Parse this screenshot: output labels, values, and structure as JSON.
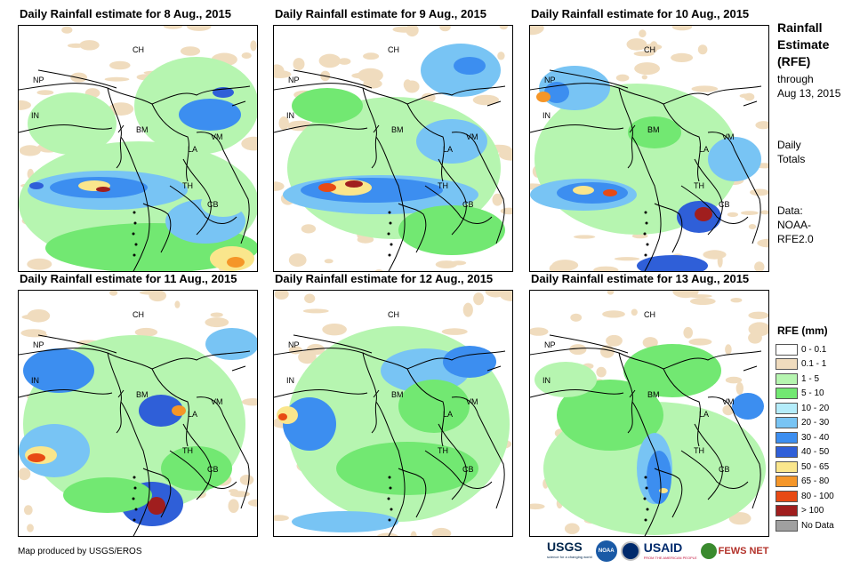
{
  "panels": [
    {
      "title": "Daily Rainfall estimate for 8 Aug., 2015"
    },
    {
      "title": "Daily Rainfall estimate for 9 Aug., 2015"
    },
    {
      "title": "Daily Rainfall estimate for 10 Aug., 2015"
    },
    {
      "title": "Daily Rainfall estimate for 11 Aug., 2015"
    },
    {
      "title": "Daily Rainfall estimate for 12 Aug., 2015"
    },
    {
      "title": "Daily Rainfall estimate for 13 Aug., 2015"
    }
  ],
  "country_labels": {
    "ch": "CH",
    "np": "NP",
    "in": "IN",
    "bm": "BM",
    "vm": "VM",
    "la": "LA",
    "th": "TH",
    "cb": "CB"
  },
  "sidebar": {
    "title_line1": "Rainfall",
    "title_line2": "Estimate",
    "title_line3": "(RFE)",
    "through": "through",
    "date": "Aug 13, 2015",
    "daily": "Daily",
    "totals": "Totals",
    "data_label": "Data:",
    "source1": "NOAA-",
    "source2": "RFE2.0"
  },
  "legend": {
    "title": "RFE (mm)",
    "items": [
      {
        "label": "0 - 0.1",
        "color": "#ffffff"
      },
      {
        "label": "0.1 - 1",
        "color": "#f0dcbe"
      },
      {
        "label": "1 - 5",
        "color": "#b6f5b0"
      },
      {
        "label": "5 - 10",
        "color": "#72e872"
      },
      {
        "label": "10 - 20",
        "color": "#b4ecfa"
      },
      {
        "label": "20 - 30",
        "color": "#78c4f4"
      },
      {
        "label": "30 - 40",
        "color": "#3c8ef0"
      },
      {
        "label": "40 - 50",
        "color": "#2f5fd8"
      },
      {
        "label": "50 - 65",
        "color": "#fae68c"
      },
      {
        "label": "65 - 80",
        "color": "#f59628"
      },
      {
        "label": "80 - 100",
        "color": "#e84a14"
      },
      {
        "label": "> 100",
        "color": "#a01e1e"
      },
      {
        "label": "No Data",
        "color": "#a0a0a0"
      }
    ]
  },
  "credit": "Map produced by USGS/EROS",
  "logos": {
    "usgs": "USGS",
    "usgs_tagline": "science for a changing world",
    "noaa": "NOAA",
    "usaid": "USAID",
    "usaid_tagline": "FROM THE AMERICAN PEOPLE",
    "fewsnet": "FEWS NET"
  }
}
